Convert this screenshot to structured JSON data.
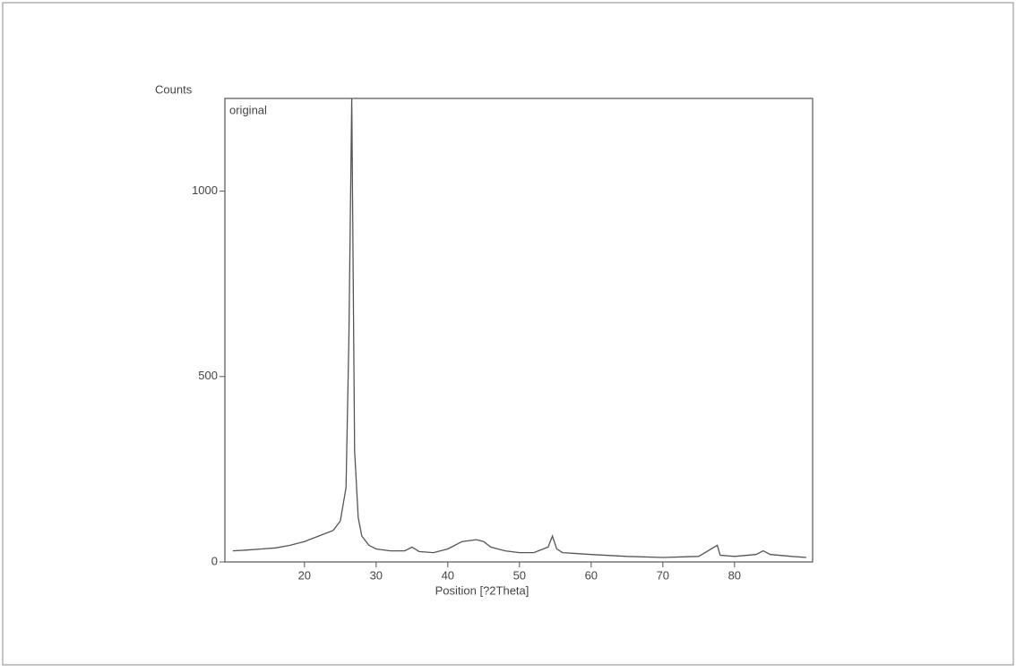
{
  "chart_data": {
    "type": "line",
    "title": "Counts",
    "annotation": "original",
    "x_label": "Position [?2Theta]",
    "x": [
      10,
      12,
      14,
      16,
      18,
      20,
      22,
      24,
      25,
      25.8,
      26.2,
      26.6,
      27,
      27.5,
      28,
      29,
      30,
      32,
      34,
      35,
      36,
      38,
      40,
      42,
      44,
      45,
      46,
      48,
      50,
      52,
      54,
      54.6,
      55.2,
      56,
      60,
      65,
      70,
      75,
      77.6,
      78,
      80,
      83,
      84,
      85,
      88,
      90
    ],
    "values": [
      30,
      32,
      35,
      38,
      45,
      55,
      70,
      85,
      110,
      200,
      600,
      1250,
      300,
      120,
      70,
      45,
      35,
      30,
      30,
      40,
      28,
      25,
      35,
      55,
      60,
      55,
      40,
      30,
      25,
      25,
      40,
      70,
      35,
      25,
      20,
      15,
      12,
      15,
      45,
      18,
      15,
      20,
      30,
      20,
      15,
      12
    ],
    "color": "#555555",
    "xlim": [
      8.9,
      90.9
    ],
    "ylim": [
      0,
      1250
    ],
    "xticks": [
      20,
      30,
      40,
      50,
      60,
      70,
      80
    ],
    "yticks": [
      0,
      500,
      1000
    ]
  }
}
